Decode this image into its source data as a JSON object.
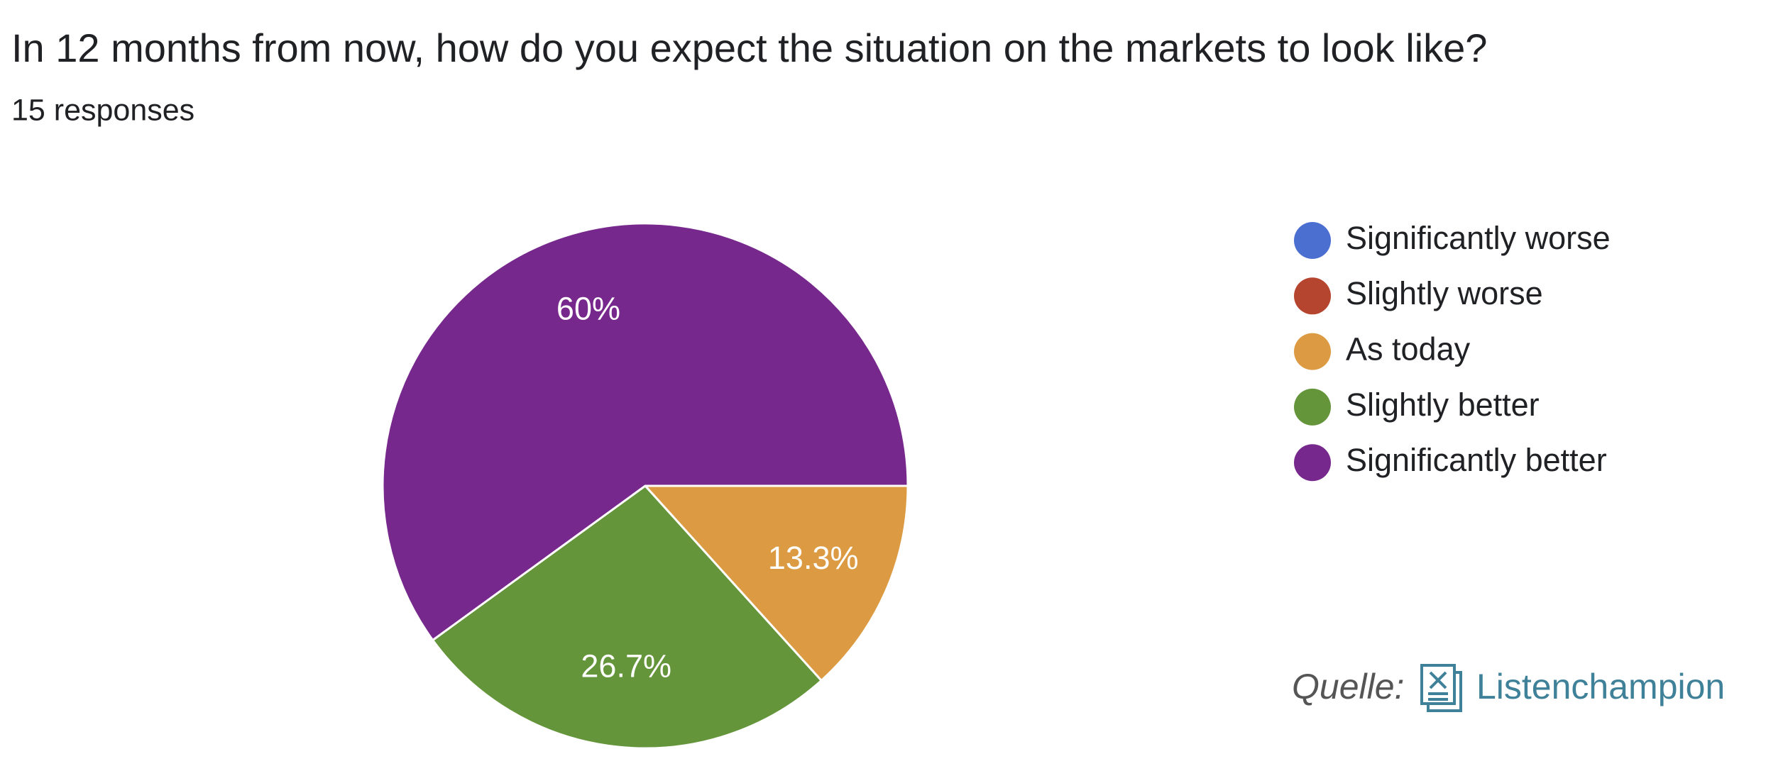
{
  "chart_data": {
    "type": "pie",
    "title": "In 12 months from now, how do you expect the situation on the markets to look like?",
    "subtitle": "15 responses",
    "categories": [
      "Significantly worse",
      "Slightly worse",
      "As today",
      "Slightly better",
      "Significantly better"
    ],
    "values": [
      0,
      0,
      13.3,
      26.7,
      60
    ],
    "value_labels": [
      null,
      null,
      "13.3%",
      "26.7%",
      "60%"
    ],
    "colors": [
      "#4a6fd0",
      "#b5452f",
      "#dc9b42",
      "#65953b",
      "#77288c"
    ],
    "legend": "right"
  },
  "source": {
    "label": "Quelle:",
    "name": "Listenchampion"
  }
}
